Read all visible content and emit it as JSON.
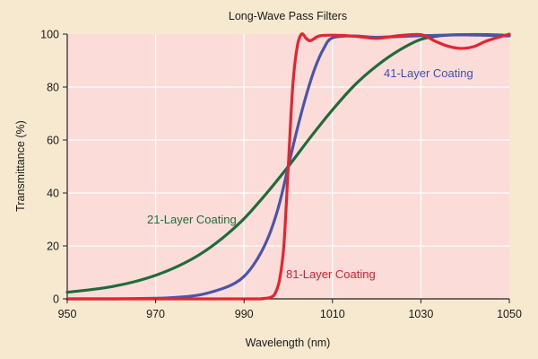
{
  "chart_data": {
    "type": "line",
    "title": "Long-Wave Pass Filters",
    "xlabel": "Wavelength (nm)",
    "ylabel": "Transmittance (%)",
    "xlim": [
      950,
      1050
    ],
    "ylim": [
      0,
      100
    ],
    "x_ticks": [
      "950",
      "970",
      "990",
      "1010",
      "1030",
      "1050"
    ],
    "y_ticks": [
      "0",
      "20",
      "40",
      "60",
      "80",
      "100"
    ],
    "grid": true,
    "legend": "inline-labels",
    "colors": {
      "background_page": "#f7e9cf",
      "plot_area": "#fcdcd9",
      "grid": "#ffffff"
    },
    "series": [
      {
        "name": "21-Layer Coating",
        "color": "#1f6b3a",
        "label_color": "#1f6b3a",
        "x": [
          950,
          955,
          960,
          965,
          970,
          975,
          980,
          985,
          990,
          995,
          1000,
          1005,
          1010,
          1015,
          1020,
          1025,
          1030,
          1035,
          1040,
          1045,
          1050
        ],
        "y": [
          2.5,
          3.4,
          4.6,
          6.4,
          8.9,
          12.3,
          16.8,
          22.8,
          30.3,
          39.7,
          50.0,
          61.0,
          71.4,
          80.7,
          88.0,
          93.8,
          98.0,
          99.5,
          99.8,
          99.8,
          99.5
        ]
      },
      {
        "name": "41-Layer Coating",
        "color": "#4a55a8",
        "label_color": "#3e4fb0",
        "x": [
          950,
          960,
          970,
          975,
          980,
          985,
          988,
          990,
          992,
          994,
          996,
          998,
          1000,
          1002,
          1004,
          1006,
          1008,
          1010,
          1015,
          1020,
          1030,
          1040,
          1050
        ],
        "y": [
          0,
          0,
          0.2,
          0.6,
          1.5,
          3.8,
          6.0,
          8.5,
          12.5,
          18.0,
          25.5,
          36.0,
          50.0,
          64.0,
          76.5,
          87.0,
          94.5,
          98.6,
          99.3,
          98.8,
          99.4,
          99.7,
          99.3
        ]
      },
      {
        "name": "81-Layer Coating",
        "color": "#e52430",
        "label_color": "#d6212d",
        "x": [
          950,
          990,
          994,
          996,
          997,
          998,
          999,
          1000,
          1001,
          1002,
          1003,
          1004,
          1005,
          1007,
          1010,
          1015,
          1020,
          1025,
          1030,
          1033,
          1036,
          1039,
          1042,
          1045,
          1050
        ],
        "y": [
          0,
          0,
          0.1,
          0.6,
          2.0,
          7.0,
          20.0,
          50.0,
          80.0,
          95.0,
          100.0,
          98.5,
          97.5,
          99.3,
          99.6,
          99.2,
          98.4,
          99.4,
          99.8,
          97.5,
          95.5,
          94.6,
          95.3,
          97.5,
          100.0
        ]
      }
    ]
  }
}
